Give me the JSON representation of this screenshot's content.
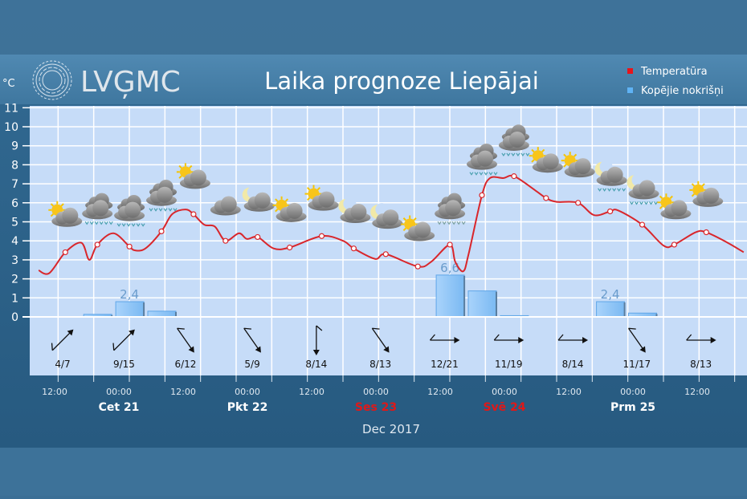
{
  "header": {
    "logo_text": "LVĢMC",
    "title": "Laika prognoze Liepājai",
    "unit_label": "°C"
  },
  "legend": {
    "items": [
      {
        "label": "Temperatūra",
        "color": "#e8141b"
      },
      {
        "label": "Kopējie nokrišņi",
        "color": "#5fb3f5"
      }
    ],
    "placement": "top-right"
  },
  "colors": {
    "plot_background": "#c6dcf8",
    "grid": "#ffffff",
    "temperature_line": "#d9262b",
    "precip_bar": "#9ccbf7",
    "precip_bar_stroke": "#5fa6e8",
    "weekend_day": "#e01818",
    "weekday": "#ffffff"
  },
  "chart_data": {
    "type": "line",
    "ylim": [
      0,
      11
    ],
    "yticks": [
      "0",
      "1",
      "2",
      "3",
      "4",
      "5",
      "6",
      "7",
      "8",
      "9",
      "10",
      "11"
    ],
    "grid": true,
    "xlabel": "Dec 2017",
    "x_tick_labels": [
      "12:00",
      "00:00",
      "12:00",
      "00:00",
      "12:00",
      "00:00",
      "12:00",
      "00:00",
      "12:00",
      "00:00",
      "12:00"
    ],
    "day_labels": [
      {
        "label": "Cet 21",
        "weekend": false
      },
      {
        "label": "Pkt 22",
        "weekend": false
      },
      {
        "label": "Ses 23",
        "weekend": true
      },
      {
        "label": "Svē 24",
        "weekend": true
      },
      {
        "label": "Prm 25",
        "weekend": false
      }
    ],
    "temperature": [
      [
        "2017-12-20 09:00",
        2.45
      ],
      [
        "2017-12-20 11:00",
        2.3
      ],
      [
        "2017-12-20 14:00",
        3.4
      ],
      [
        "2017-12-20 17:00",
        3.9
      ],
      [
        "2017-12-20 18:30",
        3.0
      ],
      [
        "2017-12-20 20:00",
        3.8
      ],
      [
        "2017-12-20 23:00",
        4.4
      ],
      [
        "2017-12-21 02:00",
        3.7
      ],
      [
        "2017-12-21 03:00",
        3.5
      ],
      [
        "2017-12-21 05:00",
        3.6
      ],
      [
        "2017-12-21 08:00",
        4.5
      ],
      [
        "2017-12-21 10:00",
        5.4
      ],
      [
        "2017-12-21 12:30",
        5.65
      ],
      [
        "2017-12-21 14:00",
        5.4
      ],
      [
        "2017-12-21 16:00",
        4.85
      ],
      [
        "2017-12-21 18:00",
        4.75
      ],
      [
        "2017-12-21 20:00",
        4.0
      ],
      [
        "2017-12-21 22:30",
        4.4
      ],
      [
        "2017-12-22 00:00",
        4.1
      ],
      [
        "2017-12-22 02:00",
        4.2
      ],
      [
        "2017-12-22 05:00",
        3.6
      ],
      [
        "2017-12-22 08:00",
        3.65
      ],
      [
        "2017-12-22 14:00",
        4.25
      ],
      [
        "2017-12-22 18:00",
        4.0
      ],
      [
        "2017-12-22 20:00",
        3.6
      ],
      [
        "2017-12-23 00:00",
        3.05
      ],
      [
        "2017-12-23 02:00",
        3.3
      ],
      [
        "2017-12-23 08:00",
        2.65
      ],
      [
        "2017-12-23 10:30",
        2.9
      ],
      [
        "2017-12-23 14:00",
        3.8
      ],
      [
        "2017-12-23 15:00",
        2.9
      ],
      [
        "2017-12-23 16:30",
        2.4
      ],
      [
        "2017-12-23 17:30",
        3.3
      ],
      [
        "2017-12-23 20:00",
        6.4
      ],
      [
        "2017-12-23 21:30",
        7.3
      ],
      [
        "2017-12-24 00:00",
        7.3
      ],
      [
        "2017-12-24 02:00",
        7.4
      ],
      [
        "2017-12-24 06:00",
        6.65
      ],
      [
        "2017-12-24 08:00",
        6.25
      ],
      [
        "2017-12-24 10:00",
        6.05
      ],
      [
        "2017-12-24 14:00",
        6.0
      ],
      [
        "2017-12-24 17:00",
        5.35
      ],
      [
        "2017-12-24 20:00",
        5.55
      ],
      [
        "2017-12-24 21:30",
        5.6
      ],
      [
        "2017-12-25 02:00",
        4.85
      ],
      [
        "2017-12-25 06:00",
        3.75
      ],
      [
        "2017-12-25 08:00",
        3.8
      ],
      [
        "2017-12-25 12:00",
        4.45
      ],
      [
        "2017-12-25 14:00",
        4.45
      ],
      [
        "2017-12-25 18:00",
        3.9
      ],
      [
        "2017-12-25 21:00",
        3.4
      ]
    ],
    "precipitation_mm": [
      {
        "time": "2017-12-20 20:00",
        "value": 0.4
      },
      {
        "time": "2017-12-21 02:00",
        "value": 2.4,
        "label": "2,4"
      },
      {
        "time": "2017-12-21 08:00",
        "value": 0.9
      },
      {
        "time": "2017-12-23 14:00",
        "value": 6.6,
        "label": "6,6"
      },
      {
        "time": "2017-12-23 20:00",
        "value": 4.1
      },
      {
        "time": "2017-12-24 02:00",
        "value": 0.2
      },
      {
        "time": "2017-12-24 20:00",
        "value": 2.4,
        "label": "2,4"
      },
      {
        "time": "2017-12-25 02:00",
        "value": 0.6
      }
    ],
    "weather_icons": [
      {
        "time": "2017-12-20 14:00",
        "icon": "sun-cloud"
      },
      {
        "time": "2017-12-20 20:00",
        "icon": "overcast-rain"
      },
      {
        "time": "2017-12-21 02:00",
        "icon": "overcast-rain"
      },
      {
        "time": "2017-12-21 08:00",
        "icon": "overcast-rain"
      },
      {
        "time": "2017-12-21 14:00",
        "icon": "sun-cloud"
      },
      {
        "time": "2017-12-21 20:00",
        "icon": "cloud"
      },
      {
        "time": "2017-12-22 02:00",
        "icon": "moon-cloud"
      },
      {
        "time": "2017-12-22 08:00",
        "icon": "sun-cloud"
      },
      {
        "time": "2017-12-22 14:00",
        "icon": "sun-cloud"
      },
      {
        "time": "2017-12-22 20:00",
        "icon": "moon-cloud"
      },
      {
        "time": "2017-12-23 02:00",
        "icon": "moon-cloud"
      },
      {
        "time": "2017-12-23 08:00",
        "icon": "sun-cloud"
      },
      {
        "time": "2017-12-23 14:00",
        "icon": "overcast-sleet"
      },
      {
        "time": "2017-12-23 20:00",
        "icon": "overcast-rain"
      },
      {
        "time": "2017-12-24 02:00",
        "icon": "overcast-rain"
      },
      {
        "time": "2017-12-24 08:00",
        "icon": "sun-cloud"
      },
      {
        "time": "2017-12-24 14:00",
        "icon": "sun-cloud"
      },
      {
        "time": "2017-12-24 20:00",
        "icon": "moon-cloud-rain"
      },
      {
        "time": "2017-12-25 02:00",
        "icon": "moon-cloud-rain"
      },
      {
        "time": "2017-12-25 08:00",
        "icon": "sun-cloud"
      },
      {
        "time": "2017-12-25 14:00",
        "icon": "sun-cloud"
      }
    ],
    "wind": [
      {
        "time": "2017-12-20 13:30",
        "label": "4/7",
        "arrow_deg": 45
      },
      {
        "time": "2017-12-21 01:00",
        "label": "9/15",
        "arrow_deg": 45
      },
      {
        "time": "2017-12-21 12:30",
        "label": "6/12",
        "arrow_deg": 145
      },
      {
        "time": "2017-12-22 01:00",
        "label": "5/9",
        "arrow_deg": 145
      },
      {
        "time": "2017-12-22 13:00",
        "label": "8/14",
        "arrow_deg": 180
      },
      {
        "time": "2017-12-23 01:00",
        "label": "8/13",
        "arrow_deg": 145
      },
      {
        "time": "2017-12-23 13:00",
        "label": "12/21",
        "arrow_deg": 90
      },
      {
        "time": "2017-12-24 01:00",
        "label": "11/19",
        "arrow_deg": 90
      },
      {
        "time": "2017-12-24 13:00",
        "label": "8/14",
        "arrow_deg": 90
      },
      {
        "time": "2017-12-25 01:00",
        "label": "11/17",
        "arrow_deg": 145
      },
      {
        "time": "2017-12-25 13:00",
        "label": "8/13",
        "arrow_deg": 90
      }
    ]
  }
}
